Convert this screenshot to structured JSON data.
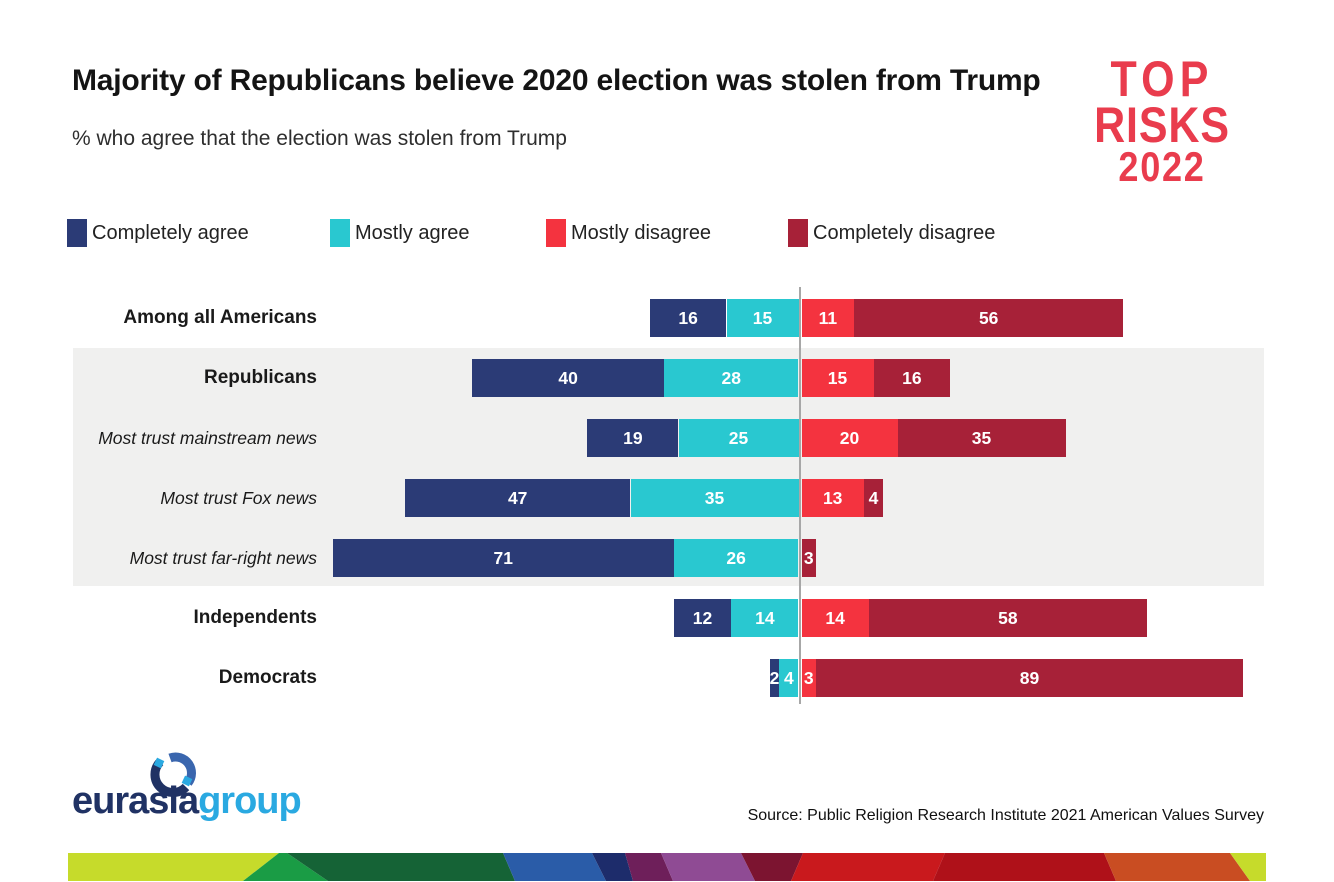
{
  "header": {
    "title": "Majority of Republicans believe 2020 election was stolen from Trump",
    "subtitle": "% who agree that the election was stolen from Trump",
    "risks_logo": {
      "line1": "TOP",
      "line2": "RISKS",
      "line3": "2022",
      "color": "#E93C4D"
    }
  },
  "chart_data": {
    "type": "bar",
    "orientation": "horizontal",
    "diverging": true,
    "unit": "%",
    "title": "Majority of Republicans believe 2020 election was stolen from Trump",
    "subtitle": "% who agree that the election was stolen from Trump",
    "legend_position": "top",
    "series_names": [
      "Completely agree",
      "Mostly agree",
      "Mostly disagree",
      "Completely disagree"
    ],
    "series_colors": [
      "#2B3B76",
      "#29C8D0",
      "#F4333F",
      "#A72138"
    ],
    "categories": [
      "Among all Americans",
      "Republicans",
      "Most trust mainstream news",
      "Most trust Fox news",
      "Most trust far-right news",
      "Independents",
      "Democrats"
    ],
    "category_styles": [
      "bold",
      "bold",
      "italic",
      "italic",
      "italic",
      "bold",
      "bold"
    ],
    "values": [
      [
        16,
        15,
        11,
        56
      ],
      [
        40,
        28,
        15,
        16
      ],
      [
        19,
        25,
        20,
        35
      ],
      [
        47,
        35,
        13,
        4
      ],
      [
        71,
        26,
        null,
        3
      ],
      [
        12,
        14,
        14,
        58
      ],
      [
        2,
        4,
        3,
        89
      ]
    ],
    "highlighted_categories": [
      "Republicans",
      "Most trust mainstream news",
      "Most trust Fox news",
      "Most trust far-right news"
    ],
    "highlight_color": "#F0F0EF",
    "center_line_color": "#A7A7A7"
  },
  "footer": {
    "brand": {
      "word_dark": "eurasia",
      "word_light": "group",
      "dark_color": "#203264",
      "light_color": "#2AA9E1",
      "mark_arc_blue": "#3A66AE"
    },
    "source": "Source: Public Religion Research Institute 2021 American Values Survey",
    "strip_colors": [
      "#C6DB2B",
      "#1A9C45",
      "#156336",
      "#2A5CA8",
      "#1D2C6B",
      "#6E1F5A",
      "#8F4B94",
      "#7C1430",
      "#C9191D",
      "#AF1119",
      "#C94D22",
      "#C6DB2B"
    ]
  }
}
